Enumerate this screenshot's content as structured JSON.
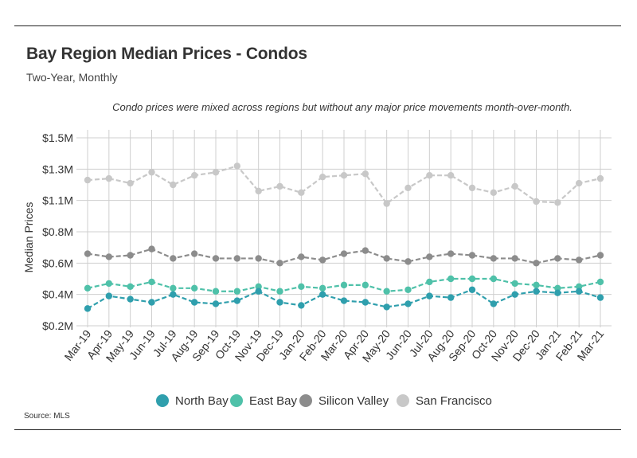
{
  "chart_data": {
    "type": "line",
    "title": "Bay Region Median Prices - Condos",
    "subtitle": "Two-Year, Monthly",
    "annotation": "Condo prices were mixed across regions but without any major price movements month-over-month.",
    "source": "Source:  MLS",
    "xlabel": "",
    "ylabel": "Median Prices",
    "ylim": [
      0.2,
      1.5
    ],
    "yticks": [
      {
        "value": 1.5,
        "label": "$1.5M"
      },
      {
        "value": 1.3,
        "label": "$1.3M"
      },
      {
        "value": 1.1,
        "label": "$1.1M"
      },
      {
        "value": 0.8,
        "label": "$0.8M"
      },
      {
        "value": 0.6,
        "label": "$0.6M"
      },
      {
        "value": 0.4,
        "label": "$0.4M"
      },
      {
        "value": 0.2,
        "label": "$0.2M"
      }
    ],
    "categories": [
      "Mar-19",
      "Apr-19",
      "May-19",
      "Jun-19",
      "Jul-19",
      "Aug-19",
      "Sep-19",
      "Oct-19",
      "Nov-19",
      "Dec-19",
      "Jan-20",
      "Feb-20",
      "Mar-20",
      "Apr-20",
      "May-20",
      "Jun-20",
      "Jul-20",
      "Aug-20",
      "Sep-20",
      "Oct-20",
      "Nov-20",
      "Dec-20",
      "Jan-21",
      "Feb-21",
      "Mar-21"
    ],
    "legend_position": "bottom",
    "grid": true,
    "series": [
      {
        "name": "North Bay",
        "color": "#2f9fad",
        "values": [
          0.31,
          0.39,
          0.37,
          0.35,
          0.4,
          0.35,
          0.34,
          0.36,
          0.42,
          0.35,
          0.33,
          0.4,
          0.36,
          0.35,
          0.32,
          0.34,
          0.39,
          0.38,
          0.43,
          0.34,
          0.4,
          0.42,
          0.41,
          0.42,
          0.38
        ]
      },
      {
        "name": "East Bay",
        "color": "#4fc1a9",
        "values": [
          0.44,
          0.47,
          0.45,
          0.48,
          0.44,
          0.44,
          0.42,
          0.42,
          0.45,
          0.42,
          0.45,
          0.44,
          0.46,
          0.46,
          0.42,
          0.43,
          0.48,
          0.5,
          0.5,
          0.5,
          0.47,
          0.46,
          0.44,
          0.45,
          0.48
        ]
      },
      {
        "name": "Silicon Valley",
        "color": "#8c8c8c",
        "values": [
          0.66,
          0.64,
          0.65,
          0.69,
          0.63,
          0.66,
          0.63,
          0.63,
          0.63,
          0.6,
          0.64,
          0.62,
          0.66,
          0.68,
          0.63,
          0.61,
          0.64,
          0.66,
          0.65,
          0.63,
          0.63,
          0.6,
          0.63,
          0.62,
          0.65
        ]
      },
      {
        "name": "San Francisco",
        "color": "#c8c8c8",
        "values": [
          1.23,
          1.24,
          1.21,
          1.28,
          1.2,
          1.26,
          1.28,
          1.32,
          1.16,
          1.19,
          1.15,
          1.25,
          1.26,
          1.27,
          1.07,
          1.18,
          1.26,
          1.26,
          1.18,
          1.15,
          1.19,
          1.09,
          1.08,
          1.21,
          1.24
        ]
      }
    ]
  }
}
